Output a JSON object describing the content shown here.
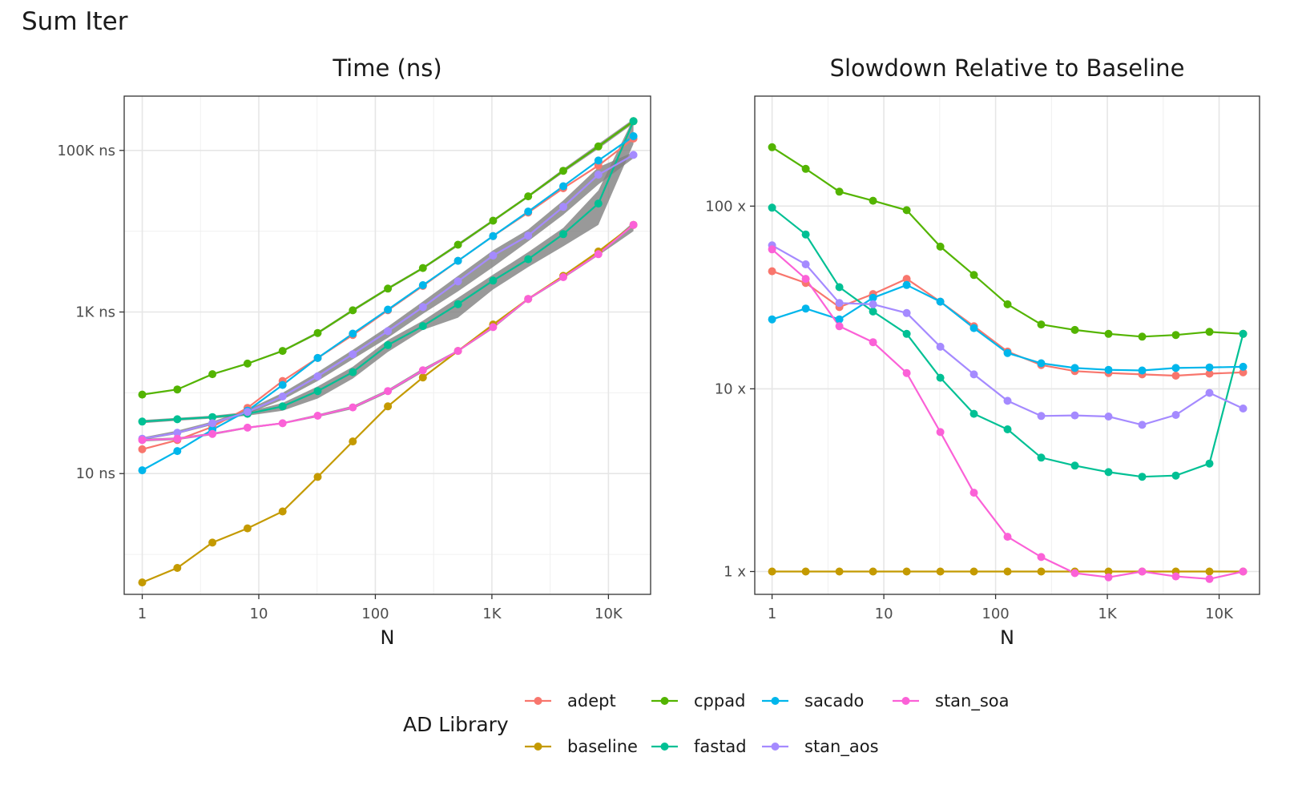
{
  "title": "Sum Iter",
  "chart_data": [
    {
      "type": "line",
      "title": "Time (ns)",
      "xlabel": "N",
      "ylabel": "",
      "x_scale": "log10",
      "y_scale": "log10",
      "xlim": [
        0.7,
        23000
      ],
      "ylim": [
        0.32,
        470000
      ],
      "x": [
        1,
        2,
        4,
        8,
        16,
        32,
        64,
        128,
        256,
        512,
        1024,
        2048,
        4096,
        8192,
        16384
      ],
      "x_ticks": [
        {
          "v": 1,
          "label": "1"
        },
        {
          "v": 10,
          "label": "10"
        },
        {
          "v": 100,
          "label": "100"
        },
        {
          "v": 1000,
          "label": "1K"
        },
        {
          "v": 10000,
          "label": "10K"
        }
      ],
      "y_ticks": [
        {
          "v": 10,
          "label": "10 ns"
        },
        {
          "v": 1000,
          "label": "1K ns"
        },
        {
          "v": 100000,
          "label": "100K ns"
        }
      ],
      "grid": true,
      "series": [
        {
          "name": "adept",
          "color": "#F8766D",
          "values": [
            20,
            26,
            38,
            65,
            140,
            270,
            520,
            1050,
            2100,
            4300,
            8700,
            17000,
            34000,
            65000,
            140000
          ]
        },
        {
          "name": "baseline",
          "color": "#C49A00",
          "values": [
            0.45,
            0.68,
            1.4,
            2.1,
            3.4,
            9.1,
            25,
            68,
            155,
            330,
            700,
            1450,
            2800,
            5600,
            12000
          ]
        },
        {
          "name": "cppad",
          "color": "#53B400",
          "values": [
            95,
            110,
            170,
            230,
            330,
            550,
            1050,
            1950,
            3500,
            6800,
            13500,
            27000,
            56000,
            112000,
            230000
          ]
        },
        {
          "name": "fastad",
          "color": "#00C094",
          "values": [
            44,
            47,
            50,
            55,
            68,
            105,
            180,
            390,
            670,
            1250,
            2450,
            4500,
            9200,
            22000,
            230000
          ]
        },
        {
          "name": "sacado",
          "color": "#00B6EB",
          "values": [
            11,
            19,
            35,
            60,
            125,
            270,
            540,
            1070,
            2150,
            4300,
            8700,
            17500,
            36000,
            75000,
            150000
          ]
        },
        {
          "name": "stan_aos",
          "color": "#A58AFF",
          "values": [
            27,
            32,
            42,
            58,
            90,
            160,
            300,
            580,
            1150,
            2400,
            5000,
            8800,
            20000,
            50000,
            88000
          ]
        },
        {
          "name": "stan_soa",
          "color": "#FB61D7",
          "values": [
            26,
            27,
            31,
            37,
            42,
            52,
            66,
            105,
            190,
            330,
            650,
            1450,
            2700,
            5200,
            12000
          ]
        }
      ],
      "ribbons": [
        {
          "series": "fastad",
          "lower": [
            42,
            45,
            48,
            52,
            60,
            85,
            150,
            320,
            600,
            850,
            1900,
            3600,
            6500,
            12000,
            120000
          ],
          "upper": [
            46,
            49,
            52,
            58,
            75,
            120,
            210,
            450,
            780,
            1500,
            2900,
            5500,
            11000,
            32000,
            250000
          ]
        },
        {
          "series": "stan_aos",
          "lower": [
            26,
            31,
            40,
            55,
            82,
            140,
            260,
            480,
            950,
            1800,
            3600,
            7500,
            16000,
            38000,
            80000
          ],
          "upper": [
            28,
            34,
            44,
            62,
            100,
            180,
            340,
            660,
            1350,
            2800,
            5800,
            10500,
            24000,
            62000,
            95000
          ]
        },
        {
          "series": "stan_soa",
          "lower": [
            25,
            26,
            30,
            36,
            41,
            50,
            63,
            100,
            180,
            320,
            620,
            1400,
            2600,
            5000,
            10000
          ],
          "upper": [
            27,
            28,
            32,
            38,
            43,
            54,
            69,
            110,
            200,
            340,
            680,
            1500,
            2800,
            5400,
            13000
          ]
        },
        {
          "series": "cppad",
          "lower": [
            93,
            108,
            166,
            225,
            320,
            530,
            1010,
            1880,
            3380,
            6500,
            13000,
            26000,
            53000,
            105000,
            215000
          ],
          "upper": [
            97,
            112,
            174,
            235,
            340,
            570,
            1090,
            2020,
            3620,
            7100,
            14000,
            28000,
            59000,
            120000,
            245000
          ]
        }
      ]
    },
    {
      "type": "line",
      "title": "Slowdown Relative to Baseline",
      "xlabel": "N",
      "ylabel": "",
      "x_scale": "log10",
      "y_scale": "log10",
      "xlim": [
        0.7,
        23000
      ],
      "ylim": [
        0.75,
        400
      ],
      "x": [
        1,
        2,
        4,
        8,
        16,
        32,
        64,
        128,
        256,
        512,
        1024,
        2048,
        4096,
        8192,
        16384
      ],
      "x_ticks": [
        {
          "v": 1,
          "label": "1"
        },
        {
          "v": 10,
          "label": "10"
        },
        {
          "v": 100,
          "label": "100"
        },
        {
          "v": 1000,
          "label": "1K"
        },
        {
          "v": 10000,
          "label": "10K"
        }
      ],
      "y_ticks": [
        {
          "v": 1,
          "label": "1 x"
        },
        {
          "v": 10,
          "label": "10 x"
        },
        {
          "v": 100,
          "label": "100 x"
        }
      ],
      "grid": true,
      "series": [
        {
          "name": "adept",
          "color": "#F8766D",
          "values": [
            44,
            38,
            28,
            33,
            40,
            30,
            22,
            16,
            13.5,
            12.5,
            12.2,
            12.0,
            11.8,
            12.1,
            12.3
          ]
        },
        {
          "name": "baseline",
          "color": "#C49A00",
          "values": [
            1,
            1,
            1,
            1,
            1,
            1,
            1,
            1,
            1,
            1,
            1,
            1,
            1,
            1,
            1
          ]
        },
        {
          "name": "cppad",
          "color": "#53B400",
          "values": [
            210,
            160,
            120,
            107,
            95,
            60,
            42,
            29,
            22.5,
            21,
            20,
            19.3,
            19.7,
            20.5,
            20
          ]
        },
        {
          "name": "fastad",
          "color": "#00C094",
          "values": [
            98,
            70,
            36,
            26.5,
            20,
            11.5,
            7.3,
            6.0,
            4.2,
            3.8,
            3.5,
            3.3,
            3.35,
            3.9,
            20
          ]
        },
        {
          "name": "sacado",
          "color": "#00B6EB",
          "values": [
            24,
            27.5,
            24,
            31.5,
            37,
            30,
            21.5,
            15.7,
            13.8,
            13,
            12.7,
            12.6,
            13,
            13.1,
            13.2
          ]
        },
        {
          "name": "stan_aos",
          "color": "#A58AFF",
          "values": [
            61,
            48,
            29.5,
            29,
            26,
            17,
            12,
            8.6,
            7.1,
            7.15,
            7.05,
            6.35,
            7.2,
            9.5,
            7.8
          ]
        },
        {
          "name": "stan_soa",
          "color": "#FB61D7",
          "values": [
            58,
            40,
            22,
            18,
            12.2,
            5.8,
            2.7,
            1.55,
            1.2,
            0.98,
            0.93,
            1.0,
            0.94,
            0.91,
            1.0
          ]
        }
      ]
    }
  ],
  "legend": {
    "title": "AD Library",
    "placement": "bottom",
    "items": [
      {
        "name": "adept",
        "color": "#F8766D"
      },
      {
        "name": "baseline",
        "color": "#C49A00"
      },
      {
        "name": "cppad",
        "color": "#53B400"
      },
      {
        "name": "fastad",
        "color": "#00C094"
      },
      {
        "name": "sacado",
        "color": "#00B6EB"
      },
      {
        "name": "stan_aos",
        "color": "#A58AFF"
      },
      {
        "name": "stan_soa",
        "color": "#FB61D7"
      }
    ]
  }
}
